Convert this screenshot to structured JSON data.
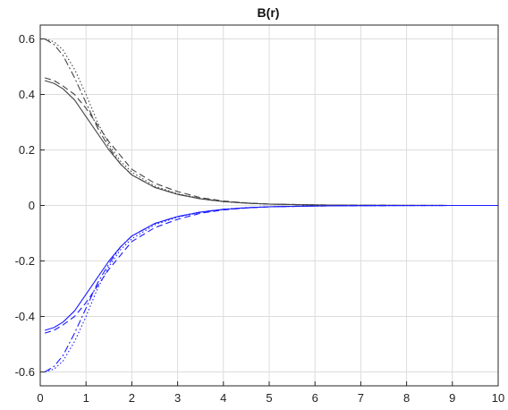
{
  "chart_data": {
    "type": "line",
    "title": "B(r)",
    "xlabel": "",
    "ylabel": "",
    "xlim": [
      0,
      10
    ],
    "ylim": [
      -0.65,
      0.65
    ],
    "xticks": [
      0,
      1,
      2,
      3,
      4,
      5,
      6,
      7,
      8,
      9,
      10
    ],
    "yticks": [
      -0.6,
      -0.4,
      -0.2,
      0,
      0.2,
      0.4,
      0.6
    ],
    "xtick_labels": [
      "0",
      "1",
      "2",
      "3",
      "4",
      "5",
      "6",
      "7",
      "8",
      "9",
      "10"
    ],
    "ytick_labels": [
      "-0.6",
      "-0.4",
      "-0.2",
      "0",
      "0.2",
      "0.4",
      "0.6"
    ],
    "grid": true,
    "legend": "none",
    "series": [
      {
        "color": "#444444",
        "style": "solid",
        "x": [
          0.1,
          0.3,
          0.5,
          0.75,
          1,
          1.25,
          1.5,
          1.75,
          2,
          2.5,
          3,
          3.5,
          4,
          4.5,
          5,
          6,
          7,
          8,
          9,
          10
        ],
        "y": [
          0.45,
          0.44,
          0.42,
          0.38,
          0.32,
          0.26,
          0.2,
          0.15,
          0.11,
          0.065,
          0.04,
          0.024,
          0.014,
          0.008,
          0.005,
          0.002,
          0.0008,
          0.0003,
          0.0001,
          0
        ]
      },
      {
        "color": "#444444",
        "style": "dashed",
        "x": [
          0.1,
          0.3,
          0.5,
          0.75,
          1,
          1.25,
          1.5,
          1.75,
          2,
          2.5,
          3,
          3.5,
          4,
          4.5,
          5,
          6,
          7,
          8,
          9,
          10
        ],
        "y": [
          0.46,
          0.45,
          0.43,
          0.4,
          0.35,
          0.29,
          0.23,
          0.18,
          0.13,
          0.08,
          0.05,
          0.028,
          0.016,
          0.009,
          0.005,
          0.002,
          0.0008,
          0.0003,
          0.0001,
          0
        ]
      },
      {
        "color": "#444444",
        "style": "dashdot",
        "x": [
          0.1,
          0.3,
          0.5,
          0.75,
          1,
          1.25,
          1.5,
          1.75,
          2,
          2.5,
          3,
          3.5,
          4,
          4.5,
          5,
          6,
          7,
          8,
          9,
          10
        ],
        "y": [
          0.6,
          0.58,
          0.54,
          0.46,
          0.37,
          0.28,
          0.21,
          0.15,
          0.11,
          0.065,
          0.04,
          0.024,
          0.014,
          0.008,
          0.005,
          0.002,
          0.0008,
          0.0003,
          0.0001,
          0
        ]
      },
      {
        "color": "#444444",
        "style": "dotted",
        "x": [
          0.1,
          0.3,
          0.5,
          0.75,
          1,
          1.25,
          1.5,
          1.75,
          2,
          2.5,
          3,
          3.5,
          4,
          4.5,
          5,
          6,
          7,
          8,
          9,
          10
        ],
        "y": [
          0.6,
          0.59,
          0.56,
          0.49,
          0.4,
          0.3,
          0.22,
          0.16,
          0.12,
          0.07,
          0.042,
          0.025,
          0.015,
          0.009,
          0.005,
          0.002,
          0.0008,
          0.0003,
          0.0001,
          0
        ]
      },
      {
        "color": "#1a1aff",
        "style": "solid",
        "x": [
          0.1,
          0.3,
          0.5,
          0.75,
          1,
          1.25,
          1.5,
          1.75,
          2,
          2.5,
          3,
          3.5,
          4,
          4.5,
          5,
          6,
          7,
          8,
          9,
          10
        ],
        "y": [
          -0.45,
          -0.44,
          -0.42,
          -0.38,
          -0.32,
          -0.26,
          -0.2,
          -0.15,
          -0.11,
          -0.065,
          -0.04,
          -0.024,
          -0.014,
          -0.008,
          -0.005,
          -0.002,
          -0.0008,
          -0.0003,
          -0.0001,
          0
        ]
      },
      {
        "color": "#1a1aff",
        "style": "dashed",
        "x": [
          0.1,
          0.3,
          0.5,
          0.75,
          1,
          1.25,
          1.5,
          1.75,
          2,
          2.5,
          3,
          3.5,
          4,
          4.5,
          5,
          6,
          7,
          8,
          9,
          10
        ],
        "y": [
          -0.46,
          -0.45,
          -0.43,
          -0.4,
          -0.35,
          -0.29,
          -0.23,
          -0.18,
          -0.13,
          -0.08,
          -0.05,
          -0.028,
          -0.016,
          -0.009,
          -0.005,
          -0.002,
          -0.0008,
          -0.0003,
          -0.0001,
          0
        ]
      },
      {
        "color": "#1a1aff",
        "style": "dashdot",
        "x": [
          0.1,
          0.3,
          0.5,
          0.75,
          1,
          1.25,
          1.5,
          1.75,
          2,
          2.5,
          3,
          3.5,
          4,
          4.5,
          5,
          6,
          7,
          8,
          9,
          10
        ],
        "y": [
          -0.6,
          -0.58,
          -0.54,
          -0.46,
          -0.37,
          -0.28,
          -0.21,
          -0.15,
          -0.11,
          -0.065,
          -0.04,
          -0.024,
          -0.014,
          -0.008,
          -0.005,
          -0.002,
          -0.0008,
          -0.0003,
          -0.0001,
          0
        ]
      },
      {
        "color": "#1a1aff",
        "style": "dotted",
        "x": [
          0.1,
          0.3,
          0.5,
          0.75,
          1,
          1.25,
          1.5,
          1.75,
          2,
          2.5,
          3,
          3.5,
          4,
          4.5,
          5,
          6,
          7,
          8,
          9,
          10
        ],
        "y": [
          -0.6,
          -0.59,
          -0.56,
          -0.49,
          -0.4,
          -0.3,
          -0.22,
          -0.16,
          -0.12,
          -0.07,
          -0.042,
          -0.025,
          -0.015,
          -0.009,
          -0.005,
          -0.002,
          -0.0008,
          -0.0003,
          -0.0001,
          0
        ]
      }
    ]
  }
}
